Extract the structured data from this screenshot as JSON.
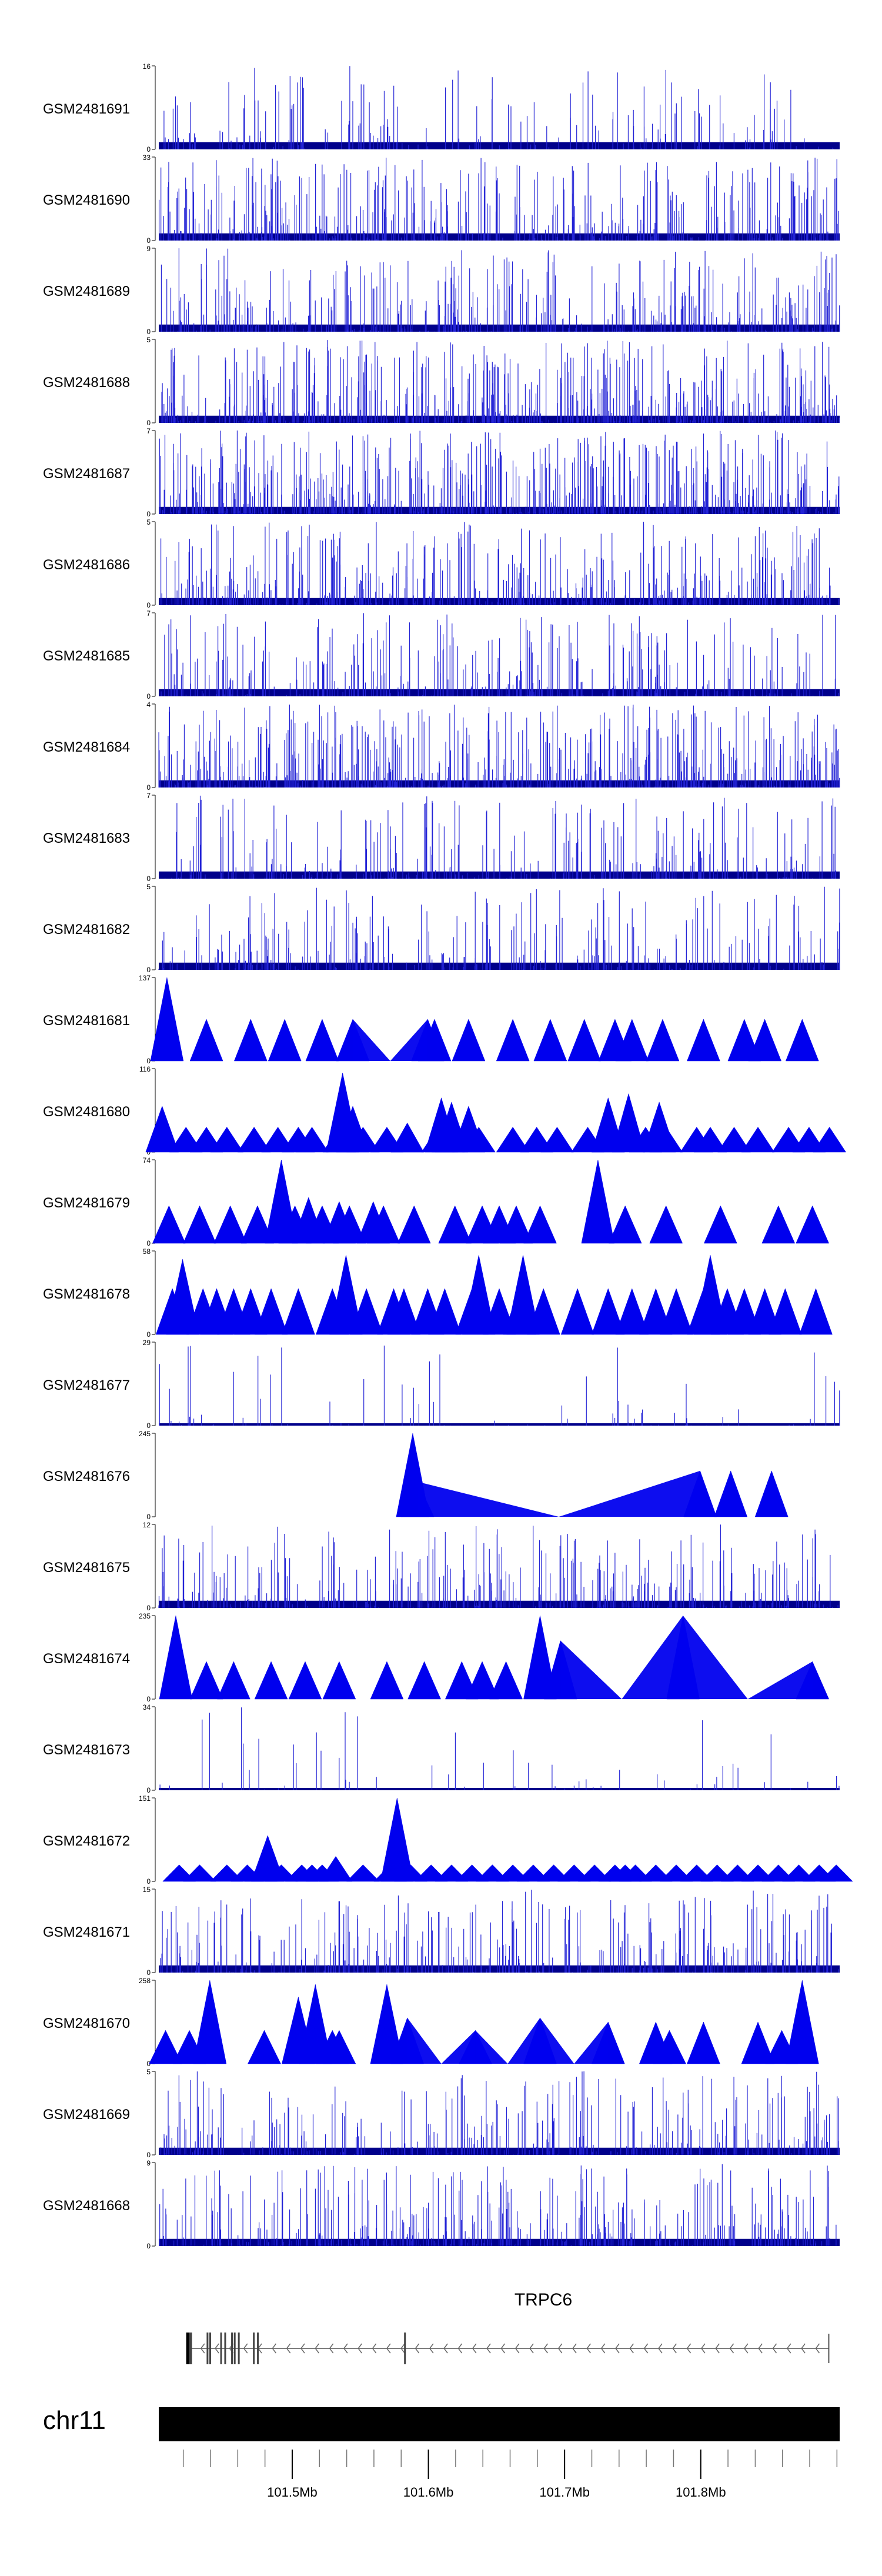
{
  "chart_data": {
    "type": "area",
    "tracks": [
      {
        "name": "GSM2481691",
        "ymax": 16,
        "style": "dense",
        "density": 0.16,
        "seed": 101
      },
      {
        "name": "GSM2481690",
        "ymax": 33,
        "style": "dense",
        "density": 0.4,
        "seed": 102
      },
      {
        "name": "GSM2481689",
        "ymax": 9,
        "style": "dense",
        "density": 0.35,
        "seed": 103
      },
      {
        "name": "GSM2481688",
        "ymax": 5,
        "style": "dense",
        "density": 0.5,
        "seed": 104
      },
      {
        "name": "GSM2481687",
        "ymax": 7,
        "style": "dense",
        "density": 0.55,
        "seed": 105
      },
      {
        "name": "GSM2481686",
        "ymax": 5,
        "style": "dense",
        "density": 0.4,
        "seed": 106
      },
      {
        "name": "GSM2481685",
        "ymax": 7,
        "style": "dense",
        "density": 0.3,
        "seed": 107
      },
      {
        "name": "GSM2481684",
        "ymax": 4,
        "style": "dense",
        "density": 0.5,
        "seed": 108
      },
      {
        "name": "GSM2481683",
        "ymax": 7,
        "style": "dense",
        "density": 0.25,
        "seed": 109
      },
      {
        "name": "GSM2481682",
        "ymax": 5,
        "style": "dense",
        "density": 0.25,
        "seed": 110
      },
      {
        "name": "GSM2481681",
        "ymax": 137,
        "style": "peaks",
        "peaks": [
          [
            0.012,
            1.0
          ],
          [
            0.07,
            0.5
          ],
          [
            0.135,
            0.5
          ],
          [
            0.185,
            0.5
          ],
          [
            0.24,
            0.5
          ],
          [
            0.285,
            0.5
          ],
          [
            0.395,
            0.5
          ],
          [
            0.405,
            0.5
          ],
          [
            0.455,
            0.5
          ],
          [
            0.52,
            0.5
          ],
          [
            0.575,
            0.5
          ],
          [
            0.625,
            0.5
          ],
          [
            0.67,
            0.5
          ],
          [
            0.695,
            0.5
          ],
          [
            0.74,
            0.5
          ],
          [
            0.8,
            0.5
          ],
          [
            0.86,
            0.5
          ],
          [
            0.89,
            0.5
          ],
          [
            0.945,
            0.5
          ]
        ]
      },
      {
        "name": "GSM2481680",
        "ymax": 116,
        "style": "peaks",
        "peaks": [
          [
            0.005,
            0.55
          ],
          [
            0.04,
            0.3
          ],
          [
            0.07,
            0.3
          ],
          [
            0.1,
            0.3
          ],
          [
            0.14,
            0.3
          ],
          [
            0.175,
            0.3
          ],
          [
            0.205,
            0.3
          ],
          [
            0.225,
            0.3
          ],
          [
            0.265,
            0.3
          ],
          [
            0.3,
            0.3
          ],
          [
            0.335,
            0.3
          ],
          [
            0.365,
            0.3
          ],
          [
            0.41,
            0.3
          ],
          [
            0.425,
            0.3
          ],
          [
            0.47,
            0.3
          ],
          [
            0.52,
            0.3
          ],
          [
            0.555,
            0.3
          ],
          [
            0.585,
            0.3
          ],
          [
            0.63,
            0.3
          ],
          [
            0.66,
            0.3
          ],
          [
            0.715,
            0.3
          ],
          [
            0.745,
            0.3
          ],
          [
            0.79,
            0.3
          ],
          [
            0.81,
            0.3
          ],
          [
            0.845,
            0.3
          ],
          [
            0.88,
            0.3
          ],
          [
            0.925,
            0.3
          ],
          [
            0.955,
            0.3
          ],
          [
            0.985,
            0.3
          ],
          [
            0.27,
            0.95
          ],
          [
            0.415,
            0.65
          ],
          [
            0.455,
            0.55
          ],
          [
            0.43,
            0.6
          ],
          [
            0.66,
            0.65
          ],
          [
            0.69,
            0.7
          ],
          [
            0.735,
            0.6
          ],
          [
            0.285,
            0.55
          ],
          [
            0.365,
            0.35
          ]
        ]
      },
      {
        "name": "GSM2481679",
        "ymax": 74,
        "style": "peaks",
        "peaks": [
          [
            0.015,
            0.45
          ],
          [
            0.06,
            0.45
          ],
          [
            0.105,
            0.45
          ],
          [
            0.145,
            0.45
          ],
          [
            0.18,
            1.0
          ],
          [
            0.2,
            0.45
          ],
          [
            0.24,
            0.45
          ],
          [
            0.28,
            0.45
          ],
          [
            0.33,
            0.45
          ],
          [
            0.375,
            0.45
          ],
          [
            0.435,
            0.45
          ],
          [
            0.475,
            0.45
          ],
          [
            0.5,
            0.45
          ],
          [
            0.525,
            0.45
          ],
          [
            0.645,
            1.0
          ],
          [
            0.685,
            0.45
          ],
          [
            0.745,
            0.45
          ],
          [
            0.825,
            0.45
          ],
          [
            0.91,
            0.45
          ],
          [
            0.96,
            0.45
          ],
          [
            0.22,
            0.55
          ],
          [
            0.265,
            0.5
          ],
          [
            0.315,
            0.5
          ],
          [
            0.56,
            0.45
          ]
        ]
      },
      {
        "name": "GSM2481678",
        "ymax": 58,
        "style": "peaks",
        "peaks": [
          [
            0.02,
            0.55
          ],
          [
            0.035,
            0.9
          ],
          [
            0.065,
            0.55
          ],
          [
            0.085,
            0.55
          ],
          [
            0.11,
            0.55
          ],
          [
            0.135,
            0.55
          ],
          [
            0.165,
            0.55
          ],
          [
            0.205,
            0.55
          ],
          [
            0.255,
            0.55
          ],
          [
            0.275,
            0.95
          ],
          [
            0.305,
            0.55
          ],
          [
            0.345,
            0.55
          ],
          [
            0.36,
            0.55
          ],
          [
            0.395,
            0.55
          ],
          [
            0.42,
            0.55
          ],
          [
            0.46,
            0.55
          ],
          [
            0.47,
            0.95
          ],
          [
            0.5,
            0.55
          ],
          [
            0.53,
            0.55
          ],
          [
            0.535,
            0.95
          ],
          [
            0.565,
            0.55
          ],
          [
            0.615,
            0.55
          ],
          [
            0.66,
            0.55
          ],
          [
            0.695,
            0.55
          ],
          [
            0.73,
            0.55
          ],
          [
            0.76,
            0.55
          ],
          [
            0.8,
            0.55
          ],
          [
            0.81,
            0.95
          ],
          [
            0.835,
            0.55
          ],
          [
            0.86,
            0.55
          ],
          [
            0.89,
            0.55
          ],
          [
            0.92,
            0.55
          ],
          [
            0.965,
            0.55
          ]
        ]
      },
      {
        "name": "GSM2481677",
        "ymax": 29,
        "style": "sparse",
        "density": 0.08,
        "seed": 111
      },
      {
        "name": "GSM2481676",
        "ymax": 245,
        "style": "peaks",
        "peaks": [
          [
            0.373,
            1.0
          ],
          [
            0.38,
            0.42
          ],
          [
            0.795,
            0.55
          ],
          [
            0.84,
            0.55
          ],
          [
            0.9,
            0.55
          ]
        ]
      },
      {
        "name": "GSM2481675",
        "ymax": 12,
        "style": "dense",
        "density": 0.3,
        "seed": 112
      },
      {
        "name": "GSM2481674",
        "ymax": 235,
        "style": "peaks",
        "peaks": [
          [
            0.025,
            1.0
          ],
          [
            0.07,
            0.45
          ],
          [
            0.11,
            0.45
          ],
          [
            0.165,
            0.45
          ],
          [
            0.215,
            0.45
          ],
          [
            0.265,
            0.45
          ],
          [
            0.335,
            0.45
          ],
          [
            0.39,
            0.45
          ],
          [
            0.445,
            0.45
          ],
          [
            0.475,
            0.45
          ],
          [
            0.51,
            0.45
          ],
          [
            0.56,
            1.0
          ],
          [
            0.77,
            1.0
          ],
          [
            0.96,
            0.45
          ],
          [
            0.59,
            0.7
          ]
        ]
      },
      {
        "name": "GSM2481673",
        "ymax": 34,
        "style": "sparse",
        "density": 0.07,
        "seed": 113
      },
      {
        "name": "GSM2481672",
        "ymax": 151,
        "style": "peaks",
        "peaks": [
          [
            0.03,
            0.2
          ],
          [
            0.06,
            0.2
          ],
          [
            0.1,
            0.2
          ],
          [
            0.13,
            0.2
          ],
          [
            0.15,
            0.2
          ],
          [
            0.18,
            0.2
          ],
          [
            0.21,
            0.2
          ],
          [
            0.24,
            0.2
          ],
          [
            0.26,
            0.3
          ],
          [
            0.3,
            0.2
          ],
          [
            0.34,
            0.2
          ],
          [
            0.37,
            0.2
          ],
          [
            0.4,
            0.2
          ],
          [
            0.43,
            0.2
          ],
          [
            0.46,
            0.2
          ],
          [
            0.49,
            0.2
          ],
          [
            0.52,
            0.2
          ],
          [
            0.55,
            0.2
          ],
          [
            0.58,
            0.2
          ],
          [
            0.61,
            0.2
          ],
          [
            0.64,
            0.2
          ],
          [
            0.67,
            0.2
          ],
          [
            0.7,
            0.2
          ],
          [
            0.73,
            0.2
          ],
          [
            0.76,
            0.2
          ],
          [
            0.79,
            0.2
          ],
          [
            0.82,
            0.2
          ],
          [
            0.85,
            0.2
          ],
          [
            0.88,
            0.2
          ],
          [
            0.91,
            0.2
          ],
          [
            0.94,
            0.2
          ],
          [
            0.97,
            0.2
          ],
          [
            0.995,
            0.2
          ],
          [
            0.16,
            0.55
          ],
          [
            0.35,
            1.0
          ],
          [
            0.225,
            0.2
          ],
          [
            0.685,
            0.2
          ]
        ]
      },
      {
        "name": "GSM2481671",
        "ymax": 15,
        "style": "dense",
        "density": 0.3,
        "seed": 114
      },
      {
        "name": "GSM2481670",
        "ymax": 258,
        "style": "peaks",
        "peaks": [
          [
            0.01,
            0.4
          ],
          [
            0.045,
            0.4
          ],
          [
            0.075,
            1.0
          ],
          [
            0.155,
            0.4
          ],
          [
            0.205,
            0.8
          ],
          [
            0.23,
            0.95
          ],
          [
            0.265,
            0.4
          ],
          [
            0.335,
            0.95
          ],
          [
            0.365,
            0.55
          ],
          [
            0.465,
            0.4
          ],
          [
            0.56,
            0.55
          ],
          [
            0.66,
            0.5
          ],
          [
            0.73,
            0.5
          ],
          [
            0.8,
            0.5
          ],
          [
            0.88,
            0.5
          ],
          [
            0.915,
            0.4
          ],
          [
            0.945,
            1.0
          ],
          [
            0.75,
            0.4
          ],
          [
            0.255,
            0.4
          ]
        ]
      },
      {
        "name": "GSM2481669",
        "ymax": 5,
        "style": "dense",
        "density": 0.3,
        "seed": 115
      },
      {
        "name": "GSM2481668",
        "ymax": 9,
        "style": "dense",
        "density": 0.35,
        "seed": 116
      }
    ],
    "gene": {
      "name": "TRPC6",
      "start": 101.423,
      "end": 101.894,
      "strand": "-",
      "exons": [
        101.423,
        101.425,
        101.426,
        101.438,
        101.44,
        101.448,
        101.451,
        101.456,
        101.458,
        101.461,
        101.472,
        101.475,
        101.583
      ]
    },
    "chromosome": "chr11",
    "xlim": [
      101.402,
      101.902
    ],
    "xticks": [
      {
        "value": 101.5,
        "label": "101.5Mb"
      },
      {
        "value": 101.6,
        "label": "101.6Mb"
      },
      {
        "value": 101.7,
        "label": "101.7Mb"
      },
      {
        "value": 101.8,
        "label": "101.8Mb"
      }
    ],
    "minor_tick_step": 0.02,
    "ymin_label": "0",
    "color": "#0000ee",
    "dense_color": "#00008b",
    "grid": false
  }
}
